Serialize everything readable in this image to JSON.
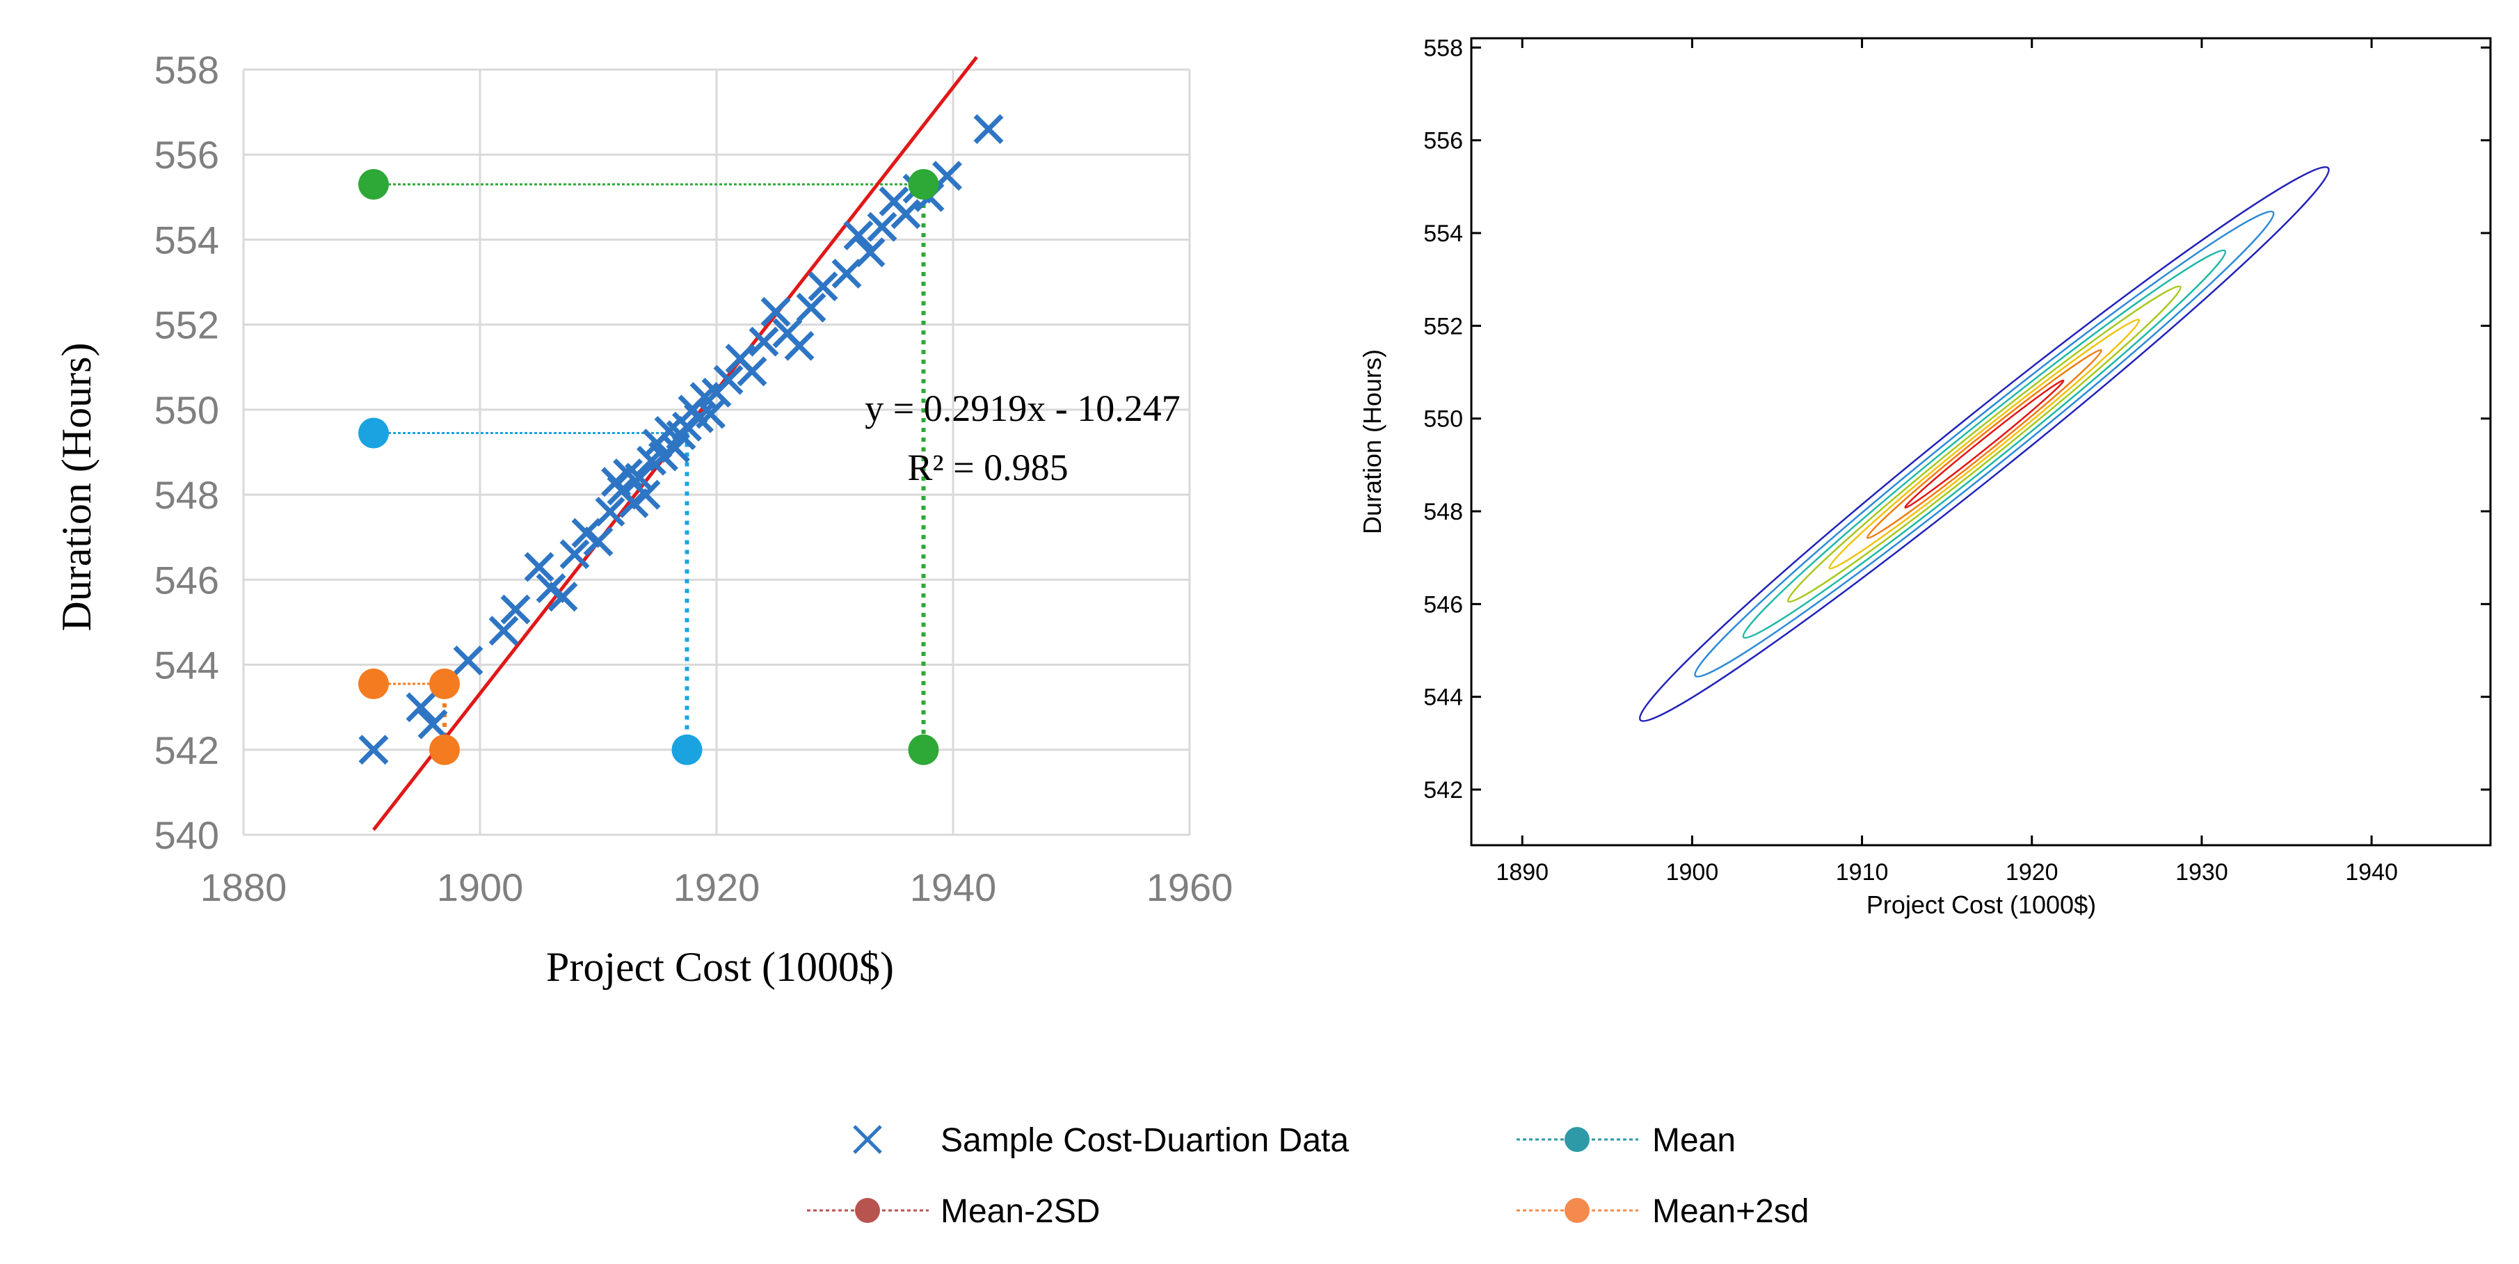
{
  "chart_data": [
    {
      "type": "scatter",
      "title": "",
      "xlabel": "Project Cost (1000$)",
      "ylabel": "Duration (Hours)",
      "xlim": [
        1880,
        1960
      ],
      "ylim": [
        540,
        558
      ],
      "xticks": [
        1880,
        1900,
        1920,
        1940,
        1960
      ],
      "yticks": [
        540,
        542,
        544,
        546,
        548,
        550,
        552,
        554,
        556,
        558
      ],
      "grid": true,
      "trendline": {
        "equation": "y = 0.2919x - 10.247",
        "r2": "R² = 0.985",
        "x": [
          1891,
          1942
        ]
      },
      "series": [
        {
          "name": "Sample Cost-Duartion Data",
          "marker": "x",
          "color": "#2e75c4",
          "x": [
            1891,
            1895,
            1896,
            1899,
            1902,
            1903,
            1905,
            1906,
            1907,
            1908,
            1909,
            1910,
            1911,
            1911.5,
            1912,
            1912.5,
            1913,
            1913.5,
            1914,
            1914.5,
            1915,
            1915.5,
            1916,
            1916.5,
            1917,
            1917.5,
            1918,
            1918.5,
            1919,
            1919.5,
            1920,
            1921,
            1922,
            1923,
            1924,
            1925,
            1926,
            1927,
            1928,
            1929,
            1931,
            1932,
            1933,
            1934,
            1935,
            1936,
            1937,
            1938,
            1939.5,
            1943
          ],
          "y": [
            542,
            543,
            542.6,
            544.1,
            544.8,
            545.3,
            546.3,
            545.8,
            545.6,
            546.6,
            547.1,
            546.9,
            547.6,
            548.3,
            548.1,
            548.5,
            547.8,
            548.4,
            548.0,
            548.8,
            549.2,
            548.9,
            549.5,
            549.1,
            549.4,
            549.6,
            550.0,
            549.8,
            550.3,
            549.9,
            550.4,
            550.7,
            551.2,
            550.9,
            551.6,
            552.3,
            551.8,
            551.5,
            552.4,
            552.9,
            553.2,
            554.1,
            553.7,
            554.3,
            554.9,
            554.6,
            555.2,
            555.0,
            555.5,
            556.6
          ]
        },
        {
          "name": "Mean",
          "marker": "circle",
          "color": "#1aa3e0",
          "points": [
            {
              "x": 1891,
              "y": 549.45
            },
            {
              "x": 1917.5,
              "y": 542
            }
          ]
        },
        {
          "name": "Mean-2SD",
          "marker": "circle",
          "color": "#f47b20",
          "points": [
            {
              "x": 1891,
              "y": 543.55
            },
            {
              "x": 1897,
              "y": 543.55
            },
            {
              "x": 1897,
              "y": 542
            }
          ]
        },
        {
          "name": "Mean+2sd",
          "marker": "circle",
          "color": "#2ea836",
          "points": [
            {
              "x": 1891,
              "y": 555.3
            },
            {
              "x": 1937.5,
              "y": 555.3
            },
            {
              "x": 1937.5,
              "y": 542
            }
          ]
        }
      ]
    },
    {
      "type": "contour",
      "title": "",
      "xlabel": "Project Cost (1000$)",
      "ylabel": "Duration (Hours)",
      "xlim": [
        1887,
        1947
      ],
      "ylim": [
        540.8,
        558.2
      ],
      "xticks": [
        1890,
        1900,
        1910,
        1920,
        1930,
        1940
      ],
      "yticks": [
        542,
        544,
        546,
        548,
        550,
        552,
        554,
        556,
        558
      ],
      "center": {
        "x": 1917.2,
        "y": 549.45
      },
      "axis_start": {
        "x": 1897,
        "y": 543.5
      },
      "axis_end": {
        "x": 1937.5,
        "y": 555.4
      },
      "levels": [
        {
          "color": "#2222bb",
          "length_fraction": 1.0,
          "width_fraction": 1.0
        },
        {
          "color": "#2d8bd8",
          "length_fraction": 0.84,
          "width_fraction": 0.8
        },
        {
          "color": "#1fb8a8",
          "length_fraction": 0.7,
          "width_fraction": 0.64
        },
        {
          "color": "#a8c81c",
          "length_fraction": 0.57,
          "width_fraction": 0.5
        },
        {
          "color": "#f2c20d",
          "length_fraction": 0.45,
          "width_fraction": 0.38
        },
        {
          "color": "#f07c12",
          "length_fraction": 0.34,
          "width_fraction": 0.27
        },
        {
          "color": "#e01818",
          "length_fraction": 0.23,
          "width_fraction": 0.15
        }
      ]
    }
  ],
  "legend": {
    "items": [
      {
        "label": "Sample Cost-Duartion Data",
        "symbol": "x",
        "color": "#2e75c4",
        "line_color": ""
      },
      {
        "label": "Mean",
        "symbol": "circle",
        "color": "#2e9aa8",
        "line_color": "#2e9aa8"
      },
      {
        "label": "Mean-2SD",
        "symbol": "circle",
        "color": "#b85450",
        "line_color": "#b85450"
      },
      {
        "label": "Mean+2sd",
        "symbol": "circle",
        "color": "#f58a4e",
        "line_color": "#f58a4e"
      }
    ]
  },
  "colors": {
    "regression_line": "#e01818",
    "grid": "#d9d9d9",
    "tick_text": "#7f7f7f"
  }
}
